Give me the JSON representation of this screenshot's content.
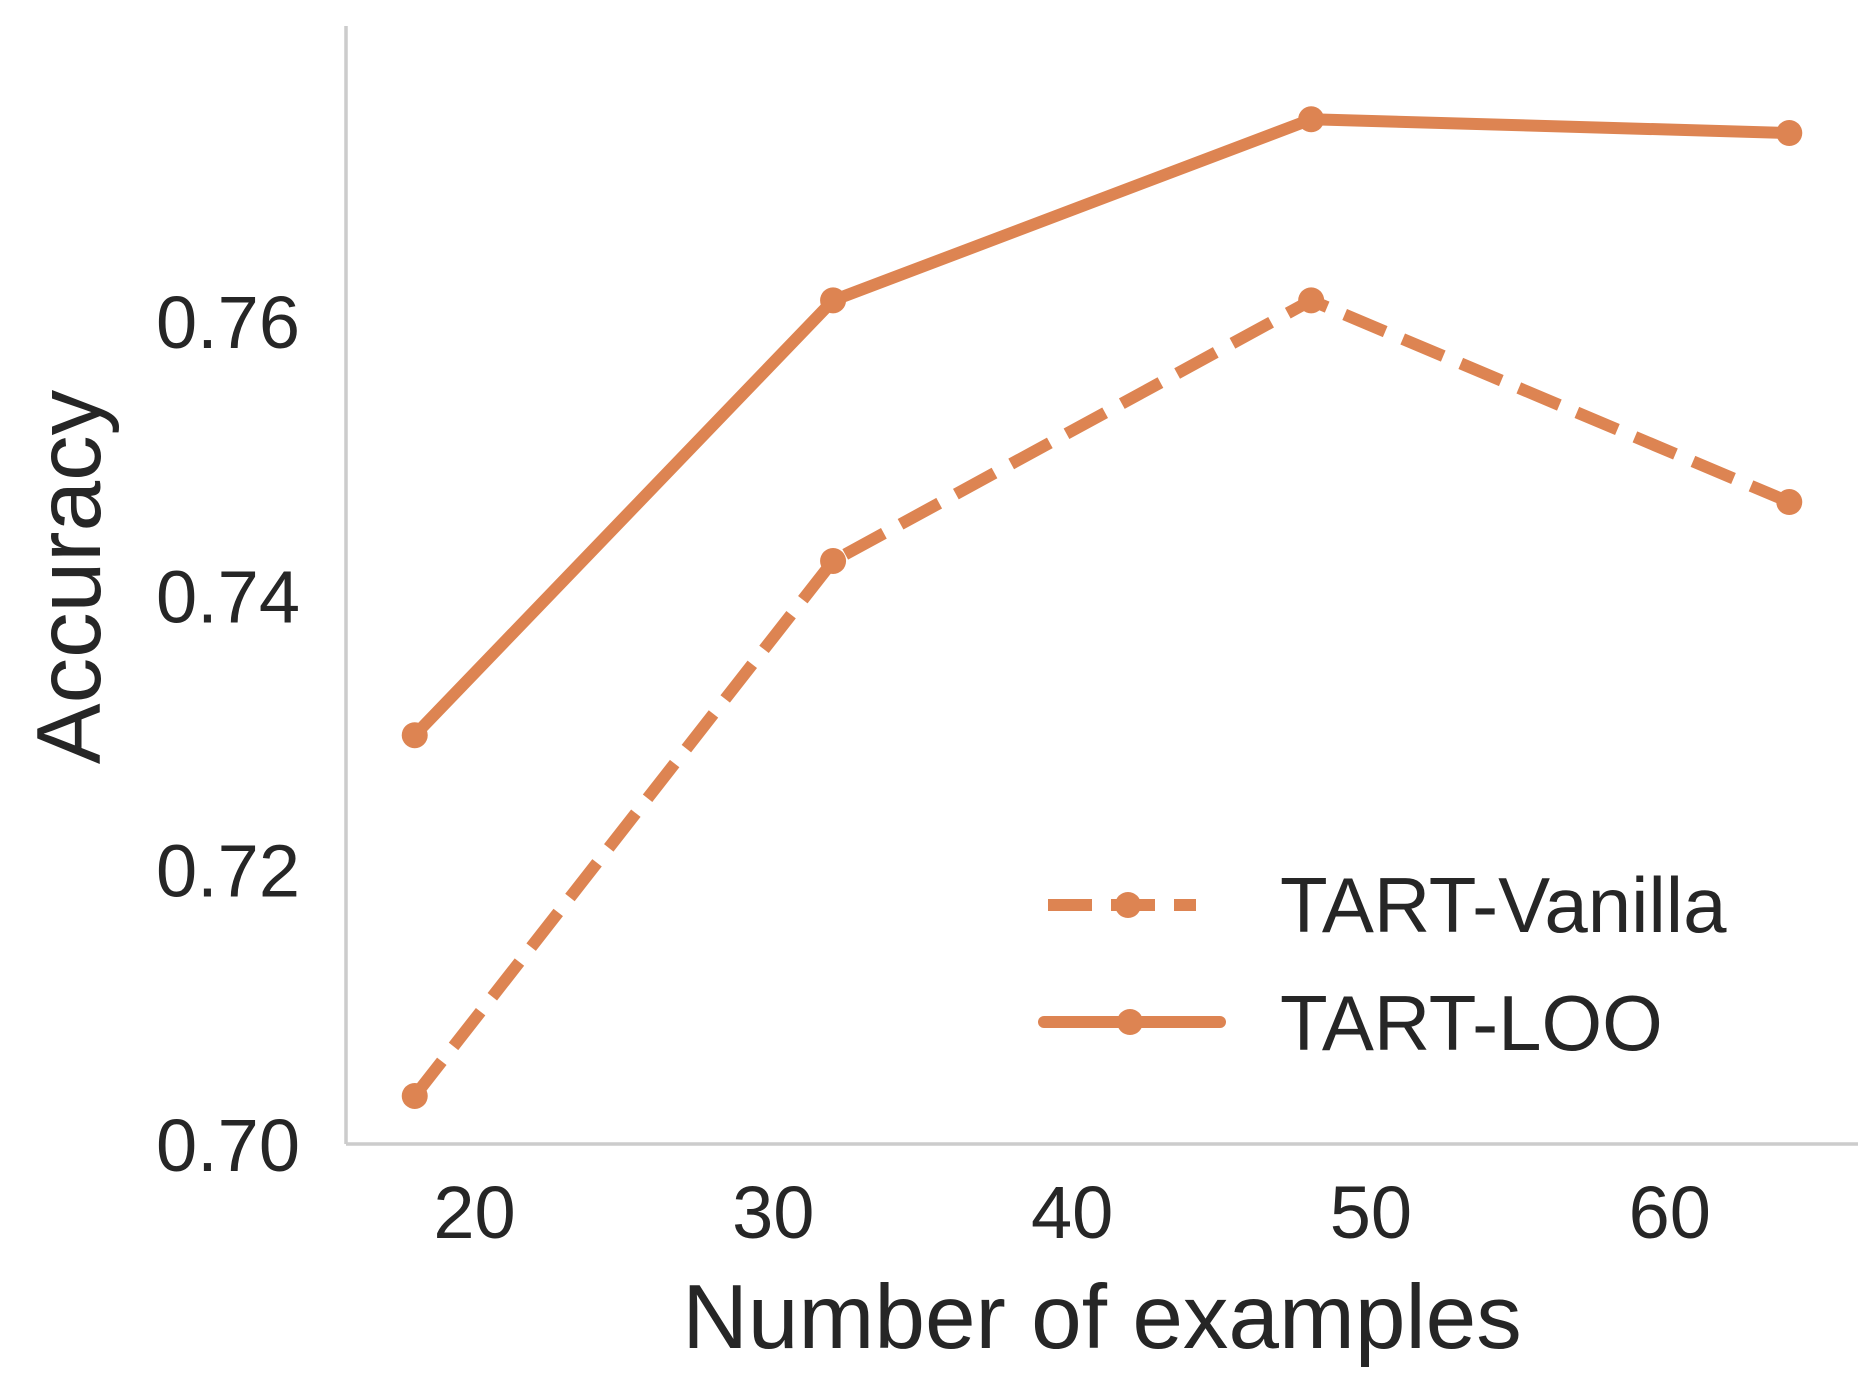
{
  "chart_data": {
    "type": "line",
    "title": "",
    "xlabel": "Number of examples",
    "ylabel": "Accuracy",
    "xlim": [
      15.7,
      66.3
    ],
    "ylim": [
      0.7,
      0.7815
    ],
    "xticks": [
      20,
      30,
      40,
      50,
      60
    ],
    "xtick_labels": [
      "20",
      "30",
      "40",
      "50",
      "60"
    ],
    "yticks": [
      0.7,
      0.72,
      0.74,
      0.76
    ],
    "ytick_labels": [
      "0.70",
      "0.72",
      "0.74",
      "0.76"
    ],
    "grid": false,
    "legend_position": "lower-right",
    "series": [
      {
        "name": "TART-Vanilla",
        "linestyle": "dashed",
        "marker": "circle",
        "color": "#dd8452",
        "x": [
          18,
          32,
          48,
          64
        ],
        "y": [
          0.7035,
          0.7425,
          0.7615,
          0.7468
        ]
      },
      {
        "name": "TART-LOO",
        "linestyle": "solid",
        "marker": "circle",
        "color": "#dd8452",
        "x": [
          18,
          32,
          48,
          64
        ],
        "y": [
          0.7298,
          0.7615,
          0.7747,
          0.7737
        ]
      }
    ]
  }
}
